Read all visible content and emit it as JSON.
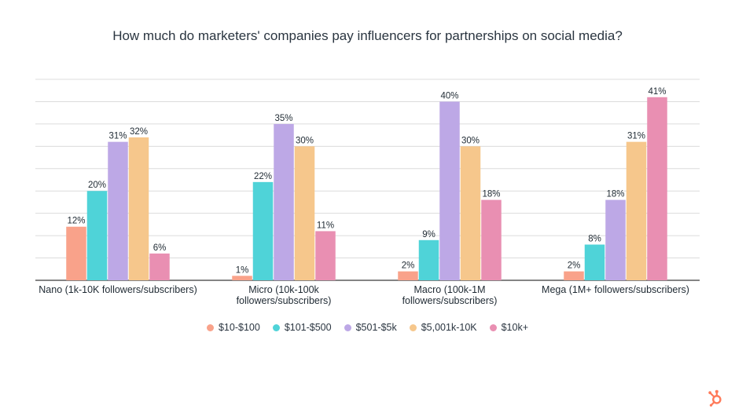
{
  "chart_data": {
    "type": "bar",
    "title": "How much do marketers' companies pay influencers for partnerships on social media?",
    "xlabel": "",
    "ylabel": "",
    "ylim": [
      0,
      45
    ],
    "grid": true,
    "legend_position": "bottom-center",
    "categories": [
      [
        "Nano (1k-10K followers/subscribers)"
      ],
      [
        "Micro (10k-100k",
        "followers/subscribers)"
      ],
      [
        "Macro (100k-1M",
        "followers/subscribers)"
      ],
      [
        "Mega (1M+ followers/subscribers)"
      ]
    ],
    "series": [
      {
        "name": "$10-$100",
        "color": "#f9a28a",
        "values": [
          12,
          1,
          2,
          2
        ],
        "labels": [
          "12%",
          "1%",
          "2%",
          "2%"
        ]
      },
      {
        "name": "$101-$500",
        "color": "#4fd3d8",
        "values": [
          20,
          22,
          9,
          8
        ],
        "labels": [
          "20%",
          "22%",
          "9%",
          "8%"
        ]
      },
      {
        "name": "$501-$5k",
        "color": "#bda8e6",
        "values": [
          31,
          35,
          40,
          18
        ],
        "labels": [
          "31%",
          "35%",
          "40%",
          "18%"
        ]
      },
      {
        "name": "$5,001k-10K",
        "color": "#f6c78c",
        "values": [
          32,
          30,
          30,
          31
        ],
        "labels": [
          "32%",
          "30%",
          "30%",
          "31%"
        ]
      },
      {
        "name": "$10k+",
        "color": "#e98fb2",
        "values": [
          6,
          11,
          18,
          41
        ],
        "labels": [
          "6%",
          "11%",
          "18%",
          "41%"
        ]
      }
    ]
  },
  "brand": {
    "logo_icon": "hubspot-sprocket-icon",
    "color": "#ff7a59"
  }
}
